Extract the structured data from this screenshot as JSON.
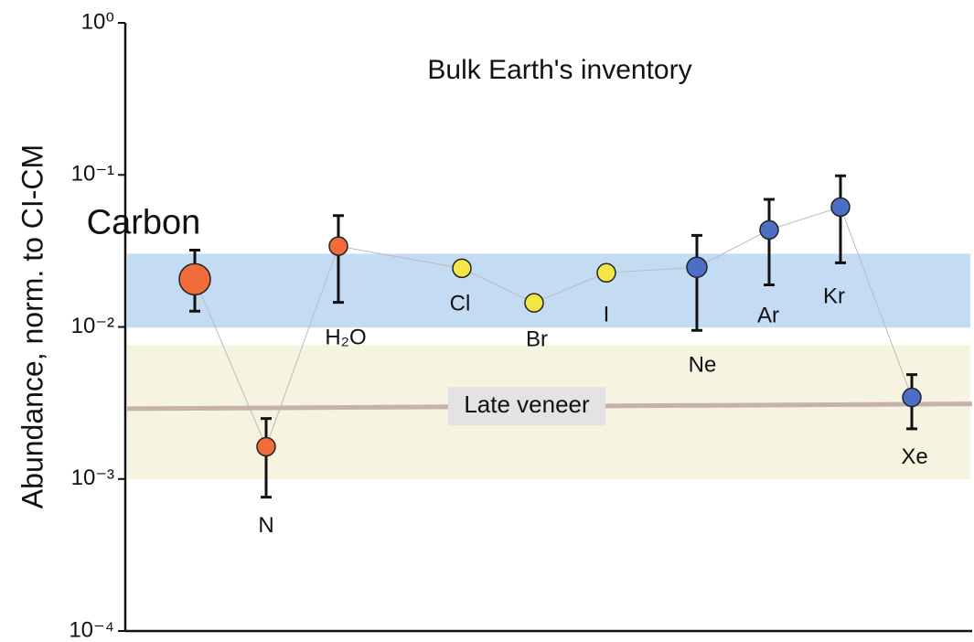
{
  "chart_data": {
    "type": "scatter",
    "title": "Bulk Earth's inventory",
    "y_label": "Abundance, norm. to CI-CM",
    "log_y": true,
    "ylim": [
      0.0001,
      1
    ],
    "yticks": [
      {
        "value": 1,
        "label": "10⁰"
      },
      {
        "value": 0.1,
        "label": "10⁻¹"
      },
      {
        "value": 0.01,
        "label": "10⁻²"
      },
      {
        "value": 0.001,
        "label": "10⁻³"
      },
      {
        "value": 0.0001,
        "label": "10⁻⁴"
      }
    ],
    "categories": [
      "Carbon",
      "N",
      "H₂O",
      "Cl",
      "Br",
      "I",
      "Ne",
      "Ar",
      "Kr",
      "Xe"
    ],
    "values": [
      0.0206,
      0.00163,
      0.034,
      0.0243,
      0.0144,
      0.0227,
      0.0247,
      0.0435,
      0.0615,
      0.00344
    ],
    "bar_top": [
      0.032,
      0.0025,
      0.054,
      null,
      null,
      null,
      0.04,
      0.069,
      0.0986,
      0.00486
    ],
    "bar_bottom": [
      0.0127,
      0.00076,
      0.0145,
      null,
      null,
      null,
      0.0095,
      0.0189,
      0.0264,
      0.00214
    ],
    "colors": [
      "#f26b3a",
      "#f26b3a",
      "#f26b3a",
      "#f3e746",
      "#f3e746",
      "#f3e746",
      "#4a6fc4",
      "#4a6fc4",
      "#4a6fc4",
      "#4a6fc4"
    ],
    "bands": [
      {
        "range": [
          0.0099,
          0.0303
        ],
        "color": "#c3dbf3"
      },
      {
        "range": [
          0.001,
          0.0076
        ],
        "color": "#f6f3e1"
      }
    ],
    "reference_line": {
      "label": "Late veneer",
      "values": [
        0.0029,
        0.00312
      ],
      "color": "#c6b1ab"
    }
  }
}
